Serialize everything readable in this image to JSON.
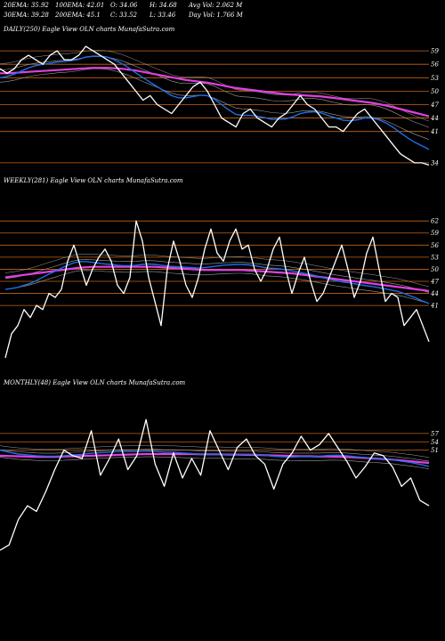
{
  "header": {
    "row1": [
      "20EMA: 35.92",
      "100EMA: 42.01",
      "O: 34.06",
      "H: 34.68",
      "Avg Vol: 2.062  M"
    ],
    "row2": [
      "30EMA: 39.28",
      "200EMA: 45.1",
      "C: 33.52",
      "L: 33.46",
      "Day Vol: 1.766  M"
    ]
  },
  "colors": {
    "background": "#000000",
    "price": "#ffffff",
    "level_lines": "#c86414",
    "ema_fast": "#1e6ee6",
    "ema_slow": "#e040e0",
    "ema_other": "#a0a0a0"
  },
  "chart_data": [
    {
      "type": "line",
      "title": "DAILY(250) Eagle   View  OLN  charts MunafaSutra.com",
      "level_labels": [
        "59",
        "56",
        "53",
        "50",
        "47",
        "44",
        "41",
        "34"
      ],
      "price": [
        55,
        54,
        55,
        57,
        58,
        57,
        56,
        58,
        59,
        57,
        57,
        58,
        60,
        59,
        58,
        57,
        56,
        54,
        52,
        50,
        48,
        49,
        47,
        46,
        45,
        47,
        49,
        51,
        52,
        50,
        47,
        44,
        43,
        42,
        45,
        46,
        44,
        43,
        42,
        44,
        45,
        47,
        49,
        47,
        46,
        44,
        42,
        42,
        41,
        43,
        45,
        46,
        44,
        42,
        40,
        38,
        36,
        35,
        34,
        34,
        33.5
      ],
      "series": [
        {
          "role": "ema_fast",
          "values": [
            53.0,
            53.3,
            53.8,
            54.5,
            55.2,
            55.7,
            56.0,
            56.2,
            56.5,
            56.6,
            56.8,
            57.1,
            57.6,
            57.8,
            57.8,
            57.6,
            57.0,
            56.2,
            55.2,
            54.1,
            53.0,
            52.0,
            51.0,
            50.0,
            49.0,
            48.5,
            48.5,
            48.8,
            49.1,
            49.0,
            48.2,
            47.0,
            45.8,
            44.8,
            44.6,
            44.6,
            44.4,
            44.1,
            43.7,
            43.7,
            43.8,
            44.3,
            45.0,
            45.3,
            45.4,
            45.1,
            44.5,
            44.0,
            43.5,
            43.4,
            43.6,
            44.0,
            44.0,
            43.6,
            42.9,
            41.9,
            40.7,
            39.6,
            38.6,
            37.8,
            37.0
          ]
        },
        {
          "role": "ema_slow",
          "values": [
            54.0,
            54.0,
            54.1,
            54.2,
            54.3,
            54.4,
            54.5,
            54.6,
            54.7,
            54.8,
            54.9,
            55.0,
            55.1,
            55.2,
            55.2,
            55.2,
            55.1,
            55.0,
            54.8,
            54.6,
            54.3,
            54.0,
            53.7,
            53.4,
            53.1,
            52.8,
            52.5,
            52.3,
            52.1,
            51.9,
            51.6,
            51.3,
            51.0,
            50.7,
            50.5,
            50.3,
            50.1,
            49.9,
            49.7,
            49.5,
            49.3,
            49.2,
            49.1,
            49.0,
            48.9,
            48.8,
            48.6,
            48.4,
            48.2,
            48.0,
            47.8,
            47.6,
            47.4,
            47.1,
            46.8,
            46.4,
            46.0,
            45.6,
            45.2,
            44.8,
            44.4
          ]
        }
      ],
      "ylim": [
        31,
        62
      ]
    },
    {
      "type": "line",
      "title": "WEEKLY(281) Eagle   View  OLN  charts MunafaSutra.com",
      "level_labels": [
        "62",
        "59",
        "56",
        "53",
        "50",
        "47",
        "44",
        "41"
      ],
      "price": [
        28,
        34,
        36,
        40,
        38,
        41,
        40,
        44,
        43,
        45,
        52,
        56,
        51,
        46,
        50,
        53,
        55,
        52,
        46,
        44,
        48,
        62,
        57,
        48,
        42,
        36,
        50,
        57,
        52,
        46,
        43,
        48,
        55,
        60,
        54,
        52,
        57,
        60,
        55,
        56,
        50,
        47,
        50,
        55,
        58,
        50,
        44,
        49,
        53,
        47,
        42,
        44,
        48,
        52,
        56,
        50,
        43,
        47,
        54,
        58,
        50,
        42,
        44,
        43,
        36,
        38,
        40,
        36,
        32
      ],
      "series": [
        {
          "role": "ema_fast",
          "values": [
            45.0,
            45.2,
            45.5,
            46.0,
            46.5,
            47.2,
            48.0,
            48.8,
            49.5,
            50.3,
            51.0,
            51.6,
            51.9,
            51.9,
            51.7,
            51.5,
            51.3,
            51.2,
            51.0,
            50.9,
            50.9,
            51.0,
            51.2,
            51.3,
            51.2,
            51.0,
            50.8,
            50.7,
            50.6,
            50.5,
            50.4,
            50.3,
            50.4,
            50.6,
            50.8,
            51.0,
            51.1,
            51.2,
            51.2,
            51.1,
            50.9,
            50.6,
            50.3,
            50.2,
            50.1,
            49.9,
            49.6,
            49.3,
            49.0,
            48.7,
            48.3,
            47.9,
            47.5,
            47.2,
            46.9,
            46.7,
            46.4,
            46.1,
            45.9,
            45.7,
            45.4,
            45.1,
            44.8,
            44.5,
            44.0,
            43.4,
            42.8,
            42.1,
            41.5
          ]
        },
        {
          "role": "ema_slow",
          "values": [
            48.0,
            48.2,
            48.4,
            48.6,
            48.8,
            49.0,
            49.2,
            49.4,
            49.6,
            49.8,
            50.0,
            50.2,
            50.4,
            50.5,
            50.6,
            50.6,
            50.6,
            50.6,
            50.6,
            50.6,
            50.6,
            50.6,
            50.6,
            50.6,
            50.6,
            50.5,
            50.4,
            50.3,
            50.2,
            50.1,
            50.0,
            49.9,
            49.8,
            49.8,
            49.8,
            49.8,
            49.8,
            49.8,
            49.8,
            49.7,
            49.6,
            49.5,
            49.4,
            49.3,
            49.2,
            49.1,
            49.0,
            48.8,
            48.6,
            48.4,
            48.2,
            48.0,
            47.8,
            47.6,
            47.4,
            47.2,
            47.0,
            46.8,
            46.6,
            46.4,
            46.2,
            46.0,
            45.8,
            45.6,
            45.4,
            45.2,
            45.0,
            44.8,
            44.6
          ]
        }
      ],
      "ylim": [
        24,
        70
      ]
    },
    {
      "type": "line",
      "title": "MONTHLY(48) Eagle   View  OLN  charts MunafaSutra.com",
      "level_labels": [
        "57",
        "54",
        "51"
      ],
      "price": [
        15,
        17,
        26,
        31,
        29,
        36,
        44,
        51,
        49,
        48,
        58,
        42,
        48,
        55,
        44,
        49,
        62,
        46,
        38,
        50,
        41,
        48,
        42,
        58,
        51,
        44,
        52,
        55,
        49,
        46,
        37,
        46,
        50,
        56,
        51,
        53,
        57,
        52,
        47,
        41,
        45,
        50,
        49,
        45,
        38,
        41,
        33,
        31
      ],
      "series": [
        {
          "role": "ema_fast",
          "values": [
            51.0,
            50.2,
            49.6,
            49.3,
            49.0,
            48.8,
            48.8,
            49.0,
            49.3,
            49.5,
            49.9,
            50.1,
            50.3,
            50.5,
            50.5,
            50.5,
            50.7,
            50.6,
            50.3,
            50.3,
            50.0,
            49.8,
            49.5,
            49.6,
            49.6,
            49.4,
            49.4,
            49.5,
            49.4,
            49.2,
            48.8,
            48.6,
            48.5,
            48.7,
            48.7,
            48.8,
            49.1,
            49.2,
            49.0,
            48.6,
            48.3,
            48.1,
            47.9,
            47.6,
            47.0,
            46.6,
            45.9,
            45.2
          ]
        },
        {
          "role": "ema_slow",
          "values": [
            49.0,
            48.9,
            48.8,
            48.7,
            48.6,
            48.6,
            48.6,
            48.7,
            48.8,
            48.9,
            49.0,
            49.1,
            49.2,
            49.3,
            49.4,
            49.5,
            49.6,
            49.6,
            49.6,
            49.6,
            49.6,
            49.6,
            49.5,
            49.5,
            49.5,
            49.4,
            49.4,
            49.3,
            49.3,
            49.2,
            49.1,
            49.0,
            48.9,
            48.8,
            48.8,
            48.7,
            48.7,
            48.6,
            48.5,
            48.4,
            48.2,
            48.0,
            47.8,
            47.6,
            47.3,
            47.0,
            46.7,
            46.4
          ]
        }
      ],
      "ylim": [
        8,
        72
      ]
    }
  ]
}
